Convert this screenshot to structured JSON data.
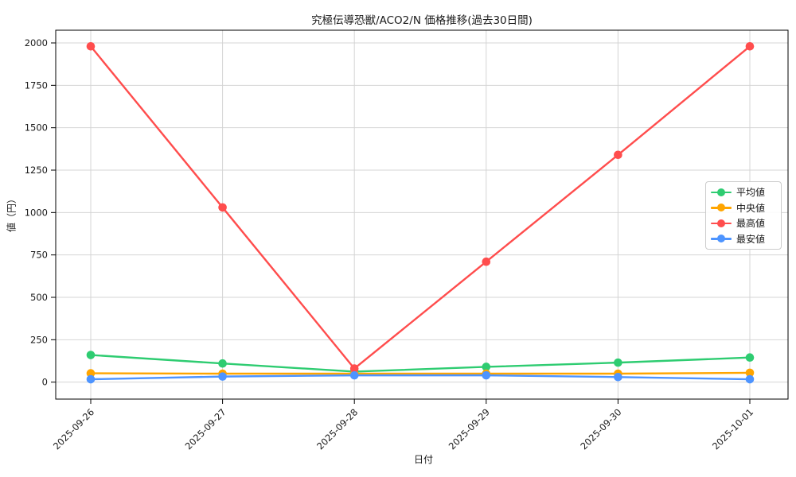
{
  "window": {
    "background": "#ffffff"
  },
  "chart_data": {
    "type": "line",
    "title": "究極伝導恐獣/ACO2/N 価格推移(過去30日間)",
    "xlabel": "日付",
    "ylabel": "値（円）",
    "categories": [
      "2025-09-26",
      "2025-09-27",
      "2025-09-28",
      "2025-09-29",
      "2025-09-30",
      "2025-10-01"
    ],
    "series": [
      {
        "name": "平均値",
        "color": "#2ecc71",
        "values": [
          160,
          110,
          62,
          90,
          115,
          145
        ]
      },
      {
        "name": "中央値",
        "color": "#ffa500",
        "values": [
          52,
          50,
          50,
          50,
          50,
          55
        ]
      },
      {
        "name": "最高値",
        "color": "#ff4d4d",
        "values": [
          1980,
          1030,
          80,
          710,
          1340,
          1980
        ]
      },
      {
        "name": "最安値",
        "color": "#4d94ff",
        "values": [
          17,
          33,
          40,
          40,
          30,
          17
        ]
      }
    ],
    "yticks": [
      0,
      250,
      500,
      750,
      1000,
      1250,
      1500,
      1750,
      2000
    ],
    "ylim": [
      -100,
      2075
    ],
    "grid": true,
    "grid_color": "#d4d4d4",
    "spine_color": "#000000",
    "tick_label_color": "#1a1a1a",
    "legend_position": "center-right",
    "x_tick_rotation": 45,
    "marker": "circle"
  }
}
